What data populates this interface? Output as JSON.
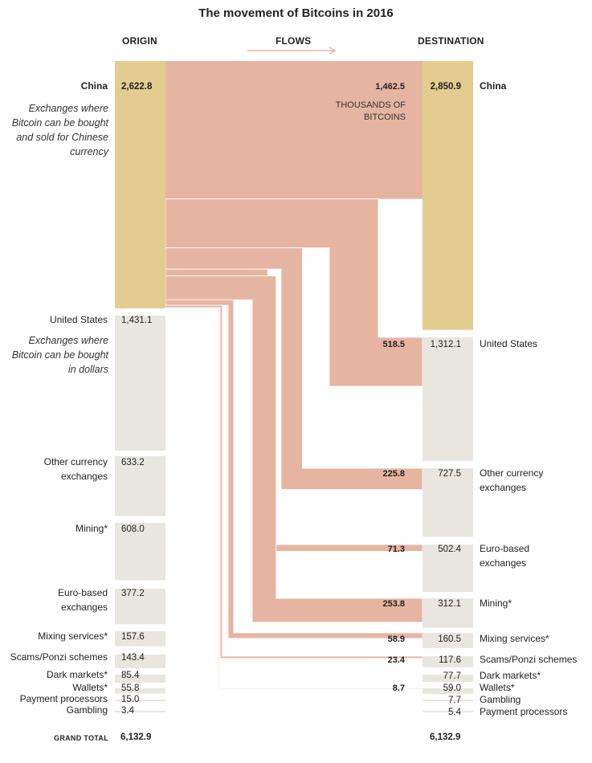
{
  "title": "The movement of Bitcoins in 2016",
  "headers": {
    "origin": "ORIGIN",
    "flows": "FLOWS",
    "destination": "DESTINATION"
  },
  "notes": {
    "china": "Exchanges where Bitcoin can be bought and sold for Chinese currency",
    "us": "Exchanges where Bitcoin can be bought in dollars"
  },
  "unit_note": "THOUSANDS OF BITCOINS",
  "grand_total": {
    "label": "GRAND TOTAL",
    "origin": "6,132.9",
    "destination": "6,132.9"
  },
  "colors": {
    "china": "#e3cc8f",
    "other": "#e8e6df",
    "flow": "#e6b5a2",
    "arrow": "#e6b5a2"
  },
  "chart_data": {
    "type": "sankey",
    "title": "The movement of Bitcoins in 2016",
    "unit": "Thousands of bitcoins",
    "origin": [
      {
        "name": "China",
        "value": 2622.8,
        "label": "2,622.8"
      },
      {
        "name": "United States",
        "value": 1431.1,
        "label": "1,431.1"
      },
      {
        "name": "Other currency exchanges",
        "value": 633.2,
        "label": "633.2"
      },
      {
        "name": "Mining*",
        "value": 608.0,
        "label": "608.0"
      },
      {
        "name": "Euro-based exchanges",
        "value": 377.2,
        "label": "377.2"
      },
      {
        "name": "Mixing services*",
        "value": 157.6,
        "label": "157.6"
      },
      {
        "name": "Scams/Ponzi schemes",
        "value": 143.4,
        "label": "143.4"
      },
      {
        "name": "Dark markets*",
        "value": 85.4,
        "label": "85.4"
      },
      {
        "name": "Wallets*",
        "value": 55.8,
        "label": "55.8"
      },
      {
        "name": "Payment processors",
        "value": 15.0,
        "label": "15.0"
      },
      {
        "name": "Gambling",
        "value": 3.4,
        "label": "3.4"
      }
    ],
    "destination": [
      {
        "name": "China",
        "value": 2850.9,
        "label": "2,850.9"
      },
      {
        "name": "United States",
        "value": 1312.1,
        "label": "1,312.1"
      },
      {
        "name": "Other currency exchanges",
        "value": 727.5,
        "label": "727.5"
      },
      {
        "name": "Euro-based exchanges",
        "value": 502.4,
        "label": "502.4"
      },
      {
        "name": "Mining*",
        "value": 312.1,
        "label": "312.1"
      },
      {
        "name": "Mixing services*",
        "value": 160.5,
        "label": "160.5"
      },
      {
        "name": "Scams/Ponzi schemes",
        "value": 117.6,
        "label": "117.6"
      },
      {
        "name": "Dark markets*",
        "value": 77.7,
        "label": "77.7"
      },
      {
        "name": "Wallets*",
        "value": 59.0,
        "label": "59.0"
      },
      {
        "name": "Gambling",
        "value": 7.7,
        "label": "7.7"
      },
      {
        "name": "Payment processors",
        "value": 5.4,
        "label": "5.4"
      }
    ],
    "flows_from_china": [
      {
        "to": "China",
        "value": 1462.5,
        "label": "1,462.5"
      },
      {
        "to": "United States",
        "value": 518.5,
        "label": "518.5"
      },
      {
        "to": "Other currency exchanges",
        "value": 225.8,
        "label": "225.8"
      },
      {
        "to": "Euro-based exchanges",
        "value": 71.3,
        "label": "71.3"
      },
      {
        "to": "Mining*",
        "value": 253.8,
        "label": "253.8"
      },
      {
        "to": "Mixing services*",
        "value": 58.9,
        "label": "58.9"
      },
      {
        "to": "Scams/Ponzi schemes",
        "value": 23.4,
        "label": "23.4"
      },
      {
        "to": "Wallets*",
        "value": 8.7,
        "label": "8.7"
      }
    ]
  }
}
